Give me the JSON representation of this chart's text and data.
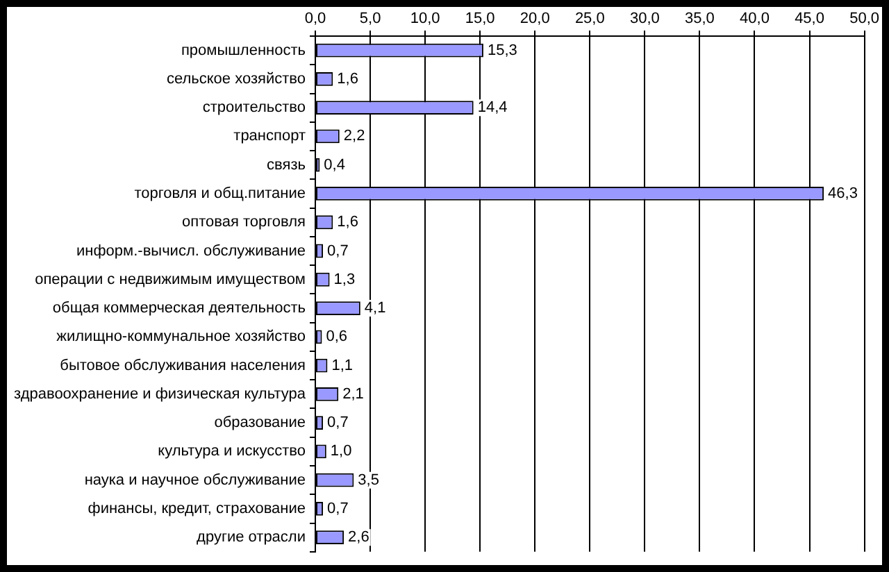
{
  "chart_data": {
    "type": "bar",
    "orientation": "horizontal",
    "categories": [
      "промышленность",
      "сельское хозяйство",
      "строительство",
      "транспорт",
      "связь",
      "торговля и общ.питание",
      "оптовая торговля",
      "информ.-вычисл. обслуживание",
      "операции с недвижимым имуществом",
      "общая коммерческая деятельность",
      "жилищно-коммунальное хозяйство",
      "бытовое обслуживания населения",
      "здравоохранение и физическая культура",
      "образование",
      "культура и искусство",
      "наука и научное обслуживание",
      "финансы, кредит, страхование",
      "другие отрасли"
    ],
    "values": [
      15.3,
      1.6,
      14.4,
      2.2,
      0.4,
      46.3,
      1.6,
      0.7,
      1.3,
      4.1,
      0.6,
      1.1,
      2.1,
      0.7,
      1.0,
      3.5,
      0.7,
      2.6
    ],
    "color": "#9999ff",
    "value_labels": [
      "15,3",
      "1,6",
      "14,4",
      "2,2",
      "0,4",
      "46,3",
      "1,6",
      "0,7",
      "1,3",
      "4,1",
      "0,6",
      "1,1",
      "2,1",
      "0,7",
      "1,0",
      "3,5",
      "0,7",
      "2,6"
    ],
    "xlim": [
      0,
      50
    ],
    "xticks": [
      {
        "value": 0,
        "label": "0,0"
      },
      {
        "value": 5,
        "label": "5,0"
      },
      {
        "value": 10,
        "label": "10,0"
      },
      {
        "value": 15,
        "label": "15,0"
      },
      {
        "value": 20,
        "label": "20,0"
      },
      {
        "value": 25,
        "label": "25,0"
      },
      {
        "value": 30,
        "label": "30,0"
      },
      {
        "value": 35,
        "label": "35,0"
      },
      {
        "value": 40,
        "label": "40,0"
      },
      {
        "value": 45,
        "label": "45,0"
      },
      {
        "value": 50,
        "label": "50,0"
      }
    ],
    "grid": "x"
  }
}
